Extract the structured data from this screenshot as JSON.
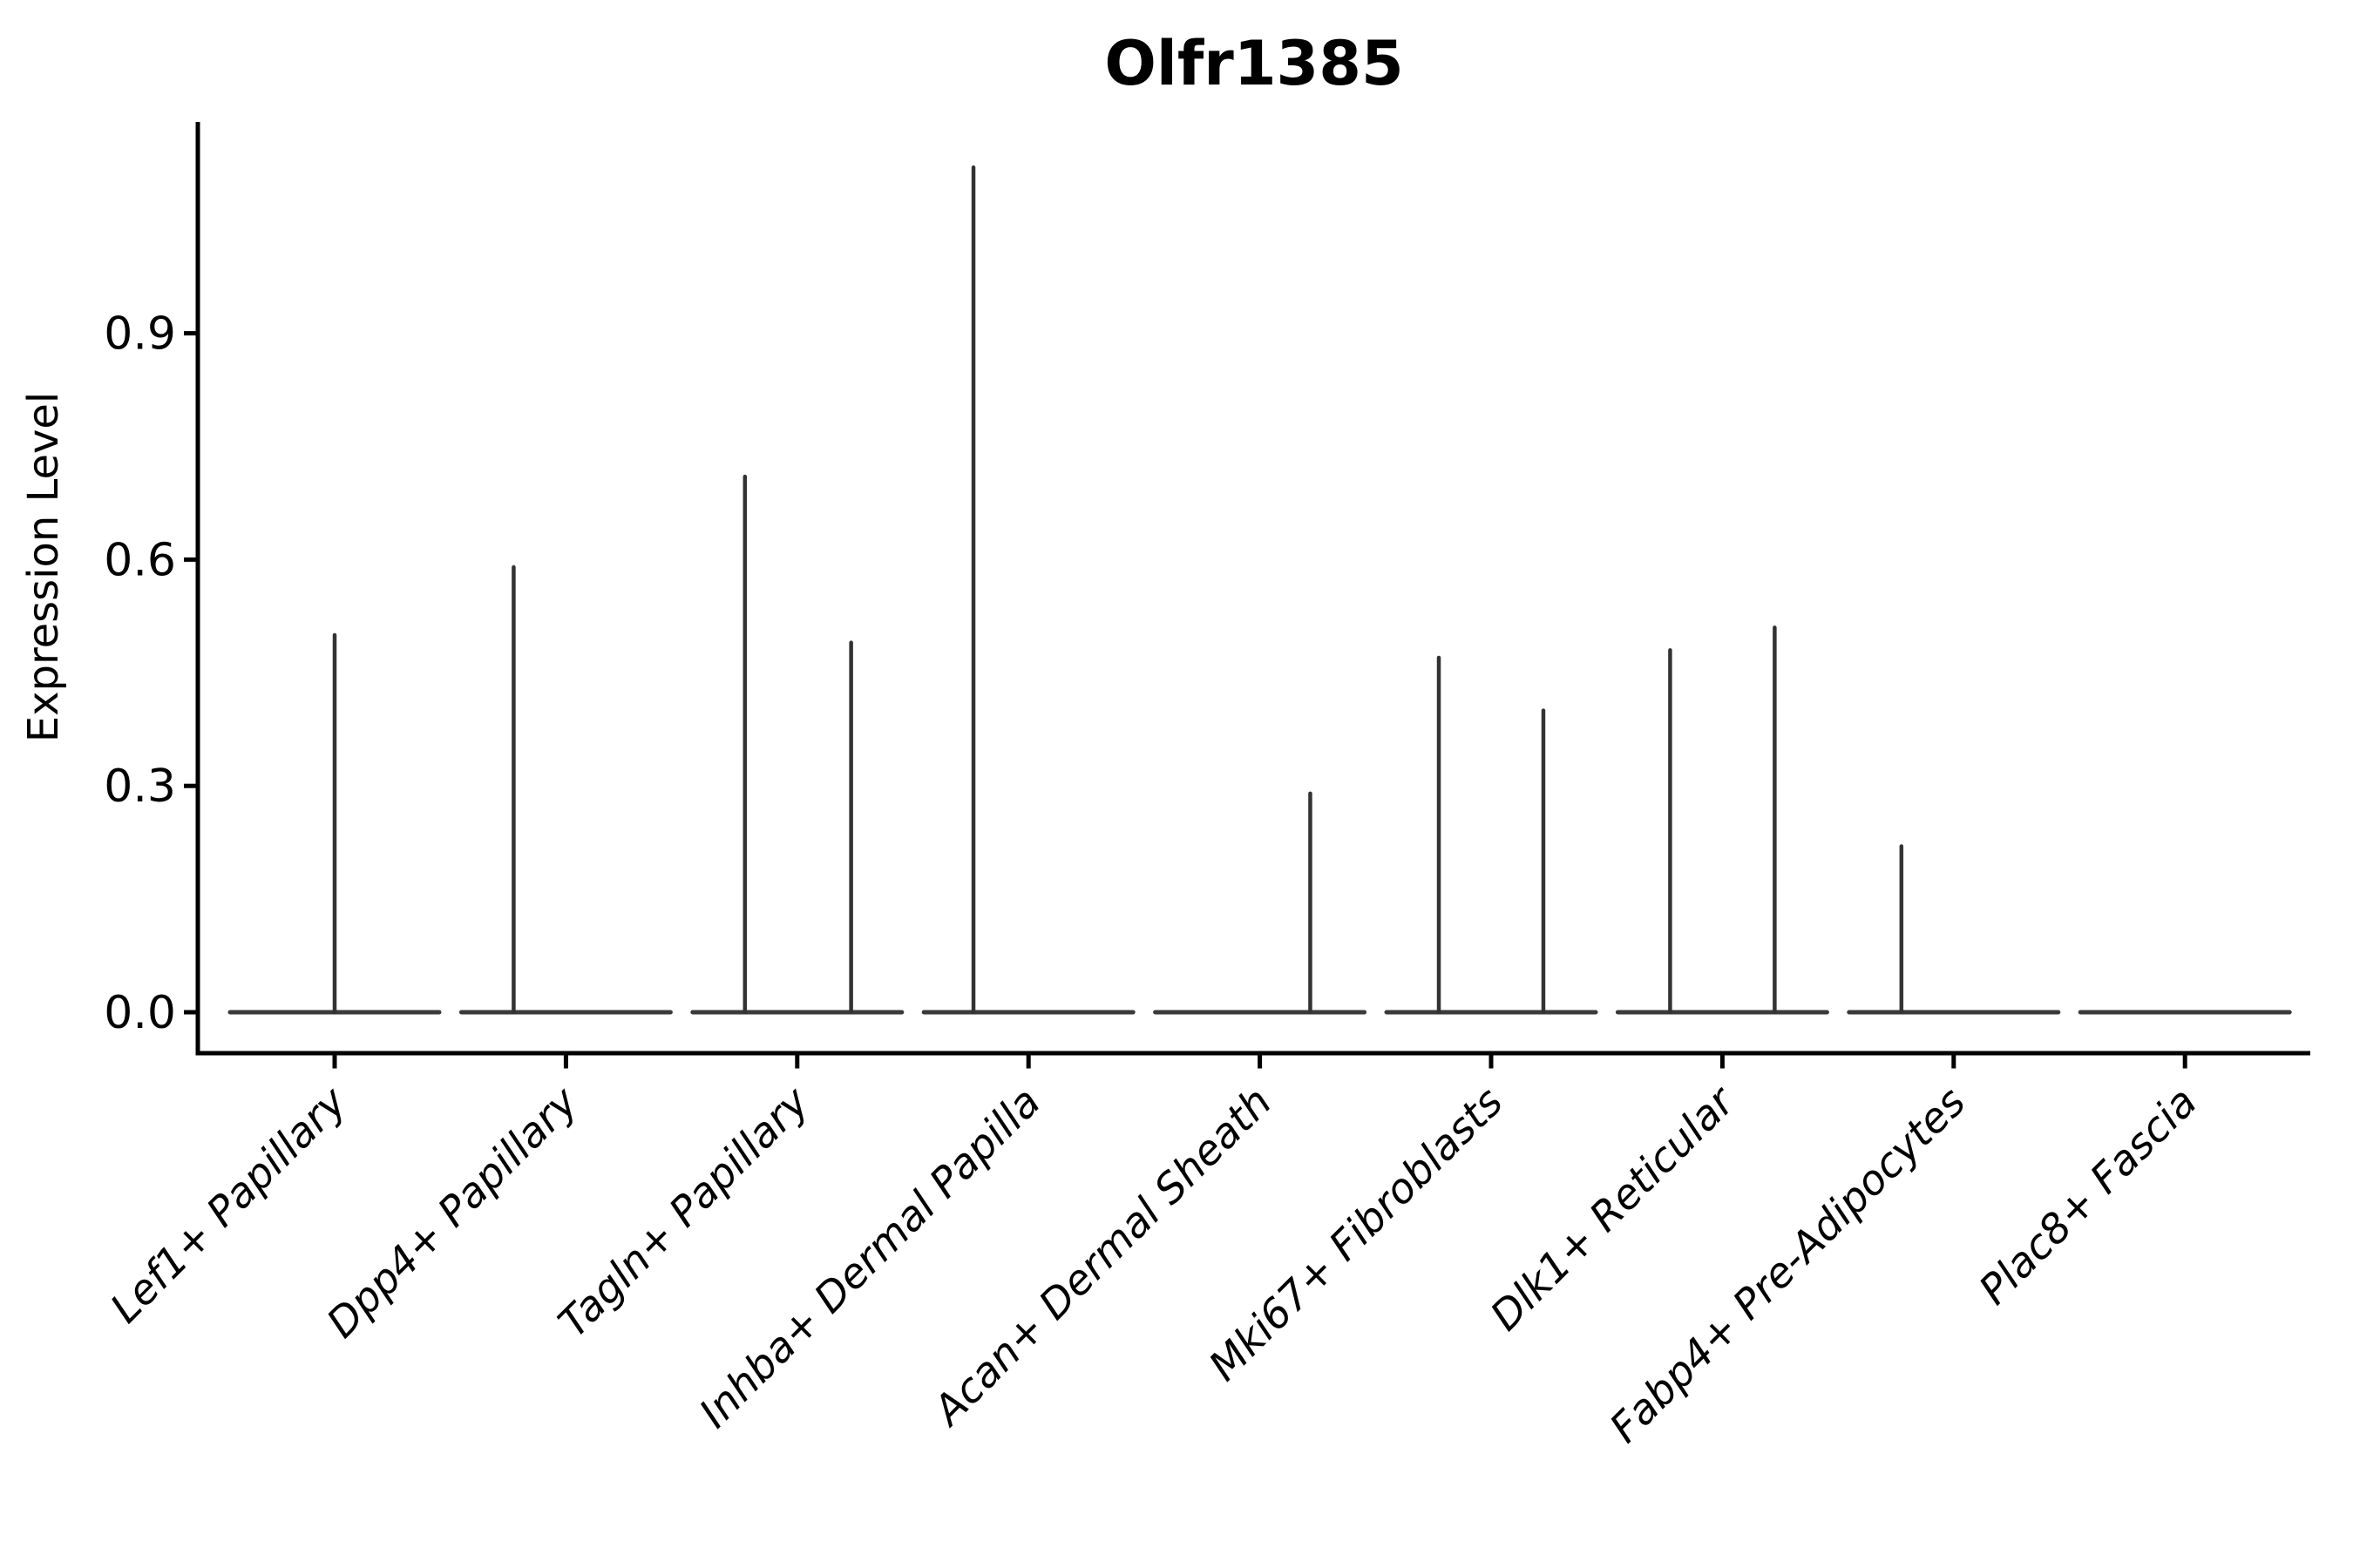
{
  "title": "Olfr1385",
  "chart_data": {
    "type": "violin",
    "title": "Olfr1385",
    "xlabel": "",
    "ylabel": "Expression Level",
    "ytick_labels": [
      "0.0",
      "0.3",
      "0.6",
      "0.9"
    ],
    "ytick_values": [
      0.0,
      0.3,
      0.6,
      0.9
    ],
    "ylim": [
      -0.05,
      1.18
    ],
    "grid": false,
    "legend": "none",
    "categories": [
      "Lef1+ Papillary",
      "Dpp4+ Papillary",
      "Tagln+ Papillary",
      "Inhba+ Dermal Papilla",
      "Acan+ Dermal Sheath",
      "Mki67+ Fibroblasts",
      "Dlk1+ Reticular",
      "Fabp4+ Pre-Adipocytes",
      "Plac8+ Fascia"
    ],
    "violins": [
      {
        "category": "Lef1+ Papillary",
        "baseline_value": 0.0,
        "spikes": [
          {
            "offset_frac": 0.0,
            "max": 0.5
          }
        ]
      },
      {
        "category": "Dpp4+ Papillary",
        "baseline_value": 0.0,
        "spikes": [
          {
            "offset_frac": -0.226,
            "max": 0.59
          }
        ]
      },
      {
        "category": "Tagln+ Papillary",
        "baseline_value": 0.0,
        "spikes": [
          {
            "offset_frac": -0.226,
            "max": 0.71
          },
          {
            "offset_frac": 0.233,
            "max": 0.49
          }
        ]
      },
      {
        "category": "Inhba+ Dermal Papilla",
        "baseline_value": 0.0,
        "spikes": [
          {
            "offset_frac": -0.238,
            "max": 1.12
          }
        ]
      },
      {
        "category": "Acan+ Dermal Sheath",
        "baseline_value": 0.0,
        "spikes": [
          {
            "offset_frac": 0.218,
            "max": 0.29
          }
        ]
      },
      {
        "category": "Mki67+ Fibroblasts",
        "baseline_value": 0.0,
        "spikes": [
          {
            "offset_frac": -0.226,
            "max": 0.47
          },
          {
            "offset_frac": 0.226,
            "max": 0.4
          }
        ]
      },
      {
        "category": "Dlk1+ Reticular",
        "baseline_value": 0.0,
        "spikes": [
          {
            "offset_frac": -0.226,
            "max": 0.48
          },
          {
            "offset_frac": 0.226,
            "max": 0.51
          }
        ]
      },
      {
        "category": "Fabp4+ Pre-Adipocytes",
        "baseline_value": 0.0,
        "spikes": [
          {
            "offset_frac": -0.226,
            "max": 0.22
          }
        ]
      },
      {
        "category": "Plac8+ Fascia",
        "baseline_value": 0.0,
        "spikes": []
      }
    ]
  },
  "colors": {
    "background": "#ffffff",
    "axis": "#000000",
    "text": "#000000",
    "violin_baseline": "#3a3a3a",
    "violin_spike": "#333333"
  }
}
